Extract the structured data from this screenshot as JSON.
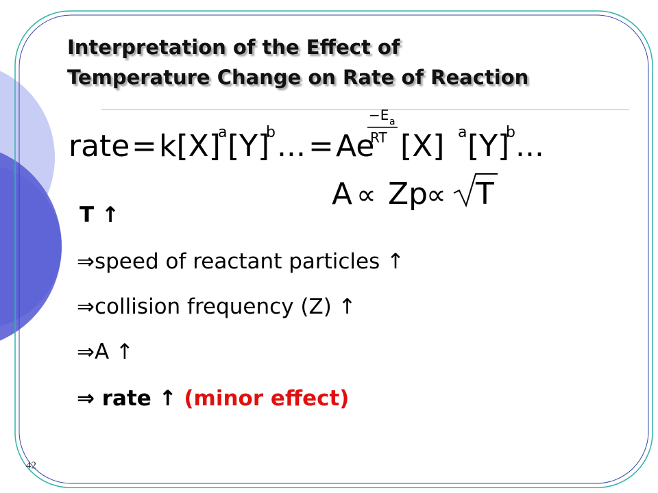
{
  "title": [
    "Interpretation of the Effect of",
    "Temperature Change on Rate of Reaction"
  ],
  "equation1": {
    "lhs": "rate",
    "eq1": "=",
    "k": "k[X]",
    "a": "a",
    "y": "[Y]",
    "b": "b",
    "dots1": "...",
    "eq2": "=",
    "ae": "Ae",
    "exp_num": "−E",
    "exp_sub": "a",
    "exp_den": "RT",
    "x2": "[X]",
    "a2": "a",
    "y2": "[Y]",
    "b2": "b",
    "dots2": "..."
  },
  "equation2": {
    "a": "A",
    "prop1": "∝",
    "zp": "Zp",
    "prop2": "∝",
    "t": "T"
  },
  "bullets": [
    "T ↑",
    "⇒speed of reactant particles ↑",
    "⇒collision frequency (Z) ↑",
    "⇒A ↑"
  ],
  "last_bullet": {
    "text": "⇒ rate ↑ ",
    "note": "(minor effect)"
  },
  "page_number": "42"
}
